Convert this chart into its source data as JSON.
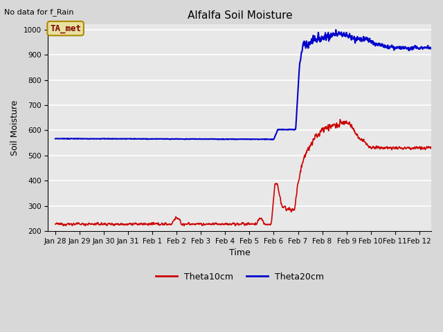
{
  "title": "Alfalfa Soil Moisture",
  "ylabel": "Soil Moisture",
  "xlabel": "Time",
  "top_left_text": "No data for f_Rain",
  "legend_box_text": "TA_met",
  "ylim": [
    200,
    1020
  ],
  "yticks": [
    200,
    300,
    400,
    500,
    600,
    700,
    800,
    900,
    1000
  ],
  "fig_bg_color": "#d8d8d8",
  "plot_bg_color": "#e8e8e8",
  "grid_color": "#ffffff",
  "line1_color": "#cc0000",
  "line2_color": "#0000cc",
  "legend_box_facecolor": "#e8e0a0",
  "legend_box_edgecolor": "#aa8800",
  "legend_box_text_color": "#800000",
  "xtick_labels": [
    "Jan 28",
    "Jan 29",
    "Jan 30",
    "Jan 31",
    "Feb 1",
    "Feb 2",
    "Feb 3",
    "Feb 4",
    "Feb 5",
    "Feb 6",
    "Feb 7",
    "Feb 8",
    "Feb 9",
    "Feb 10",
    "Feb 11",
    "Feb 12"
  ],
  "xtick_positions": [
    0,
    1,
    2,
    3,
    4,
    5,
    6,
    7,
    8,
    9,
    10,
    11,
    12,
    13,
    14,
    15
  ],
  "xlim": [
    -0.3,
    15.5
  ]
}
